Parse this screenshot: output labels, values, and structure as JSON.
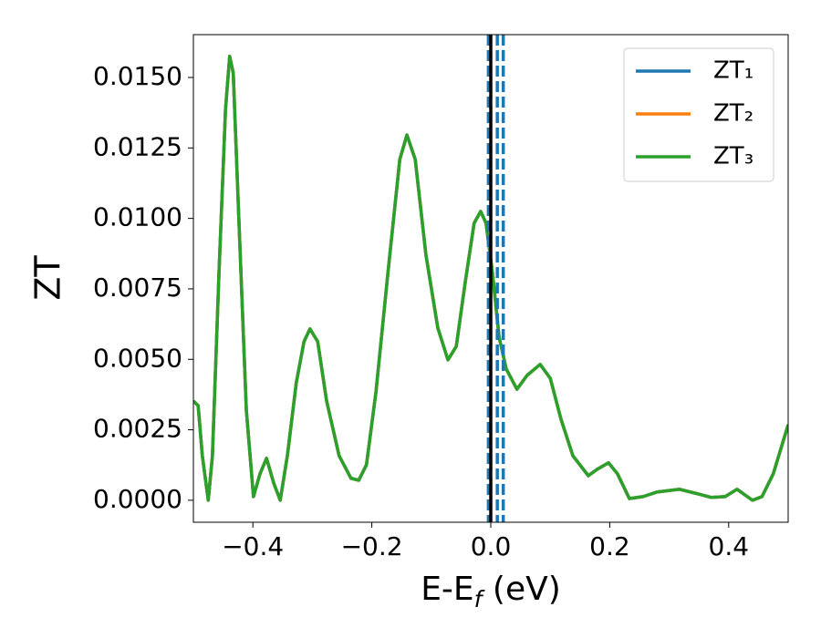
{
  "chart_data": {
    "type": "line",
    "ylabel": "ZT",
    "xlabel": {
      "main": "E-E",
      "subscript": "f",
      "suffix": " (eV)"
    },
    "x": [
      -0.5,
      -0.492,
      -0.485,
      -0.475,
      -0.468,
      -0.457,
      -0.446,
      -0.439,
      -0.433,
      -0.423,
      -0.411,
      -0.399,
      -0.388,
      -0.377,
      -0.365,
      -0.354,
      -0.342,
      -0.327,
      -0.314,
      -0.304,
      -0.291,
      -0.276,
      -0.255,
      -0.235,
      -0.222,
      -0.209,
      -0.193,
      -0.173,
      -0.153,
      -0.141,
      -0.127,
      -0.109,
      -0.089,
      -0.072,
      -0.058,
      -0.043,
      -0.028,
      -0.017,
      -0.008,
      0.003,
      0.014,
      0.026,
      0.044,
      0.061,
      0.083,
      0.1,
      0.118,
      0.138,
      0.164,
      0.179,
      0.198,
      0.213,
      0.233,
      0.256,
      0.279,
      0.317,
      0.348,
      0.371,
      0.394,
      0.414,
      0.44,
      0.456,
      0.475,
      0.5
    ],
    "series": [
      {
        "name": "ZT₁",
        "color": "#1f77b4",
        "values": [
          0.00352,
          0.00336,
          0.00158,
          0.0,
          0.00158,
          0.00805,
          0.01387,
          0.01575,
          0.01516,
          0.00967,
          0.0032,
          0.00013,
          0.00094,
          0.00149,
          0.00061,
          0.0,
          0.00158,
          0.00417,
          0.00563,
          0.00608,
          0.00563,
          0.00352,
          0.00158,
          0.00078,
          0.00071,
          0.00126,
          0.00385,
          0.00805,
          0.01209,
          0.01296,
          0.01209,
          0.0087,
          0.00611,
          0.00498,
          0.00546,
          0.00773,
          0.00983,
          0.01025,
          0.00983,
          0.00805,
          0.00579,
          0.00466,
          0.00394,
          0.00443,
          0.00482,
          0.00433,
          0.00288,
          0.00158,
          0.00087,
          0.0011,
          0.00133,
          0.00094,
          6e-05,
          0.00013,
          0.00029,
          0.00039,
          0.00023,
          0.0001,
          0.00013,
          0.00039,
          0.0,
          0.00013,
          0.00094,
          0.00268
        ]
      },
      {
        "name": "ZT₂",
        "color": "#ff7f0e",
        "values": [
          0.00352,
          0.00336,
          0.00158,
          0.0,
          0.00158,
          0.00805,
          0.01387,
          0.01575,
          0.01516,
          0.00967,
          0.0032,
          0.00013,
          0.00094,
          0.00149,
          0.00061,
          0.0,
          0.00158,
          0.00417,
          0.00563,
          0.00608,
          0.00563,
          0.00352,
          0.00158,
          0.00078,
          0.00071,
          0.00126,
          0.00385,
          0.00805,
          0.01209,
          0.01296,
          0.01209,
          0.0087,
          0.00611,
          0.00498,
          0.00546,
          0.00773,
          0.00983,
          0.01025,
          0.00983,
          0.00805,
          0.00579,
          0.00466,
          0.00394,
          0.00443,
          0.00482,
          0.00433,
          0.00288,
          0.00158,
          0.00087,
          0.0011,
          0.00133,
          0.00094,
          6e-05,
          0.00013,
          0.00029,
          0.00039,
          0.00023,
          0.0001,
          0.00013,
          0.00039,
          0.0,
          0.00013,
          0.00094,
          0.00268
        ]
      },
      {
        "name": "ZT₃",
        "color": "#2ca02c",
        "values": [
          0.00352,
          0.00336,
          0.00158,
          0.0,
          0.00158,
          0.00805,
          0.01387,
          0.01575,
          0.01516,
          0.00967,
          0.0032,
          0.00013,
          0.00094,
          0.00149,
          0.00061,
          0.0,
          0.00158,
          0.00417,
          0.00563,
          0.00608,
          0.00563,
          0.00352,
          0.00158,
          0.00078,
          0.00071,
          0.00126,
          0.00385,
          0.00805,
          0.01209,
          0.01296,
          0.01209,
          0.0087,
          0.00611,
          0.00498,
          0.00546,
          0.00773,
          0.00983,
          0.01025,
          0.00983,
          0.00805,
          0.00579,
          0.00466,
          0.00394,
          0.00443,
          0.00482,
          0.00433,
          0.00288,
          0.00158,
          0.00087,
          0.0011,
          0.00133,
          0.00094,
          6e-05,
          0.00013,
          0.00029,
          0.00039,
          0.00023,
          0.0001,
          0.00013,
          0.00039,
          0.0,
          0.00013,
          0.00094,
          0.00268
        ]
      }
    ],
    "vlines": [
      {
        "x": -0.004,
        "color": "#1f77b4",
        "style": "dashed"
      },
      {
        "x": 0.011,
        "color": "#1f77b4",
        "style": "dashed"
      },
      {
        "x": 0.021,
        "color": "#1f77b4",
        "style": "dashed"
      },
      {
        "x": 0,
        "color": "#000000",
        "style": "solid"
      }
    ],
    "xlim": [
      -0.5,
      0.5
    ],
    "ylim": [
      -0.00078,
      0.01652
    ],
    "xticks": [
      {
        "value": -0.4,
        "label": "−0.4"
      },
      {
        "value": -0.2,
        "label": "−0.2"
      },
      {
        "value": 0.0,
        "label": "0.0"
      },
      0.2,
      0.4
    ],
    "yticks": [
      {
        "value": 0,
        "label": "0.0000"
      },
      {
        "value": 0.0025,
        "label": "0.0025"
      },
      {
        "value": 0.005,
        "label": "0.0050"
      },
      {
        "value": 0.0075,
        "label": "0.0075"
      },
      {
        "value": 0.01,
        "label": "0.0100"
      },
      {
        "value": 0.0125,
        "label": "0.0125"
      },
      {
        "value": 0.015,
        "label": "0.0150"
      }
    ],
    "grid": false,
    "legend": "upper-right"
  }
}
